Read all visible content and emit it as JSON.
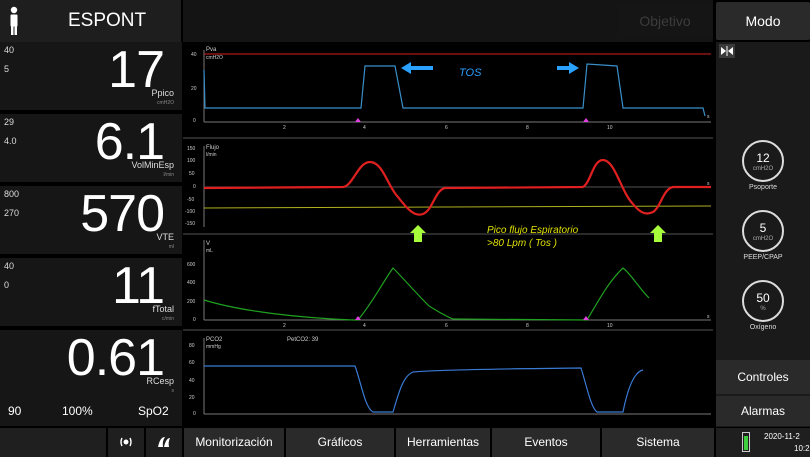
{
  "header": {
    "mode": "ESPONT",
    "objetivo": "Objetivo",
    "modo": "Modo"
  },
  "params": [
    {
      "hi": "40",
      "lo": "5",
      "value": "17",
      "label": "Ppico",
      "unit": "cmH2O"
    },
    {
      "hi": "29",
      "lo": "4.0",
      "value": "6.1",
      "label": "VolMinEsp",
      "unit": "l/min"
    },
    {
      "hi": "800",
      "lo": "270",
      "value": "570",
      "label": "VTE",
      "unit": "ml"
    },
    {
      "hi": "40",
      "lo": "0",
      "value": "11",
      "label": "fTotal",
      "unit": "c/min"
    },
    {
      "hi": "",
      "lo": "",
      "value": "0.61",
      "label": "RCesp",
      "unit": "s"
    }
  ],
  "spo2": {
    "pulse": "90",
    "percent": "100%",
    "label": "SpO2"
  },
  "graphs": {
    "pressure": {
      "title": "Pva",
      "unit": "cmH2O",
      "y_ticks": [
        "40",
        "20",
        "0"
      ]
    },
    "flow": {
      "title": "Flujo",
      "unit": "l/min",
      "y_ticks": [
        "150",
        "100",
        "50",
        "0",
        "-50",
        "-100",
        "-150"
      ]
    },
    "volume": {
      "title": "V",
      "unit": "mL",
      "y_ticks": [
        "600",
        "400",
        "200",
        "0"
      ]
    },
    "co2": {
      "title": "PCO2",
      "unit": "mmHg",
      "petco2": "PetCO2: 39",
      "y_ticks": [
        "80",
        "60",
        "40",
        "20",
        "0"
      ]
    },
    "x_ticks": [
      "2",
      "4",
      "6",
      "8",
      "10"
    ],
    "x_end": "s",
    "annotations": {
      "tos": "TOS",
      "peak_line1": "Pico flujo Espiratorio",
      "peak_line2": ">80 Lpm  ( Tos )"
    },
    "colors": {
      "pressure": "#3a8fc9",
      "flow": "#e02020",
      "volume": "#1fa11f",
      "co2": "#3a7bd5",
      "annotation": "#e0e000",
      "tos": "#3aa0ff"
    }
  },
  "knobs": [
    {
      "value": "12",
      "unit": "cmH2O",
      "label": "Psoporte"
    },
    {
      "value": "5",
      "unit": "cmH2O",
      "label": "PEEP/CPAP"
    },
    {
      "value": "50",
      "unit": "%",
      "label": "Oxígeno"
    }
  ],
  "right_buttons": {
    "controles": "Controles",
    "alarmas": "Alarmas"
  },
  "tabs": [
    "Monitorización",
    "Gráficos",
    "Herramientas",
    "Eventos",
    "Sistema"
  ],
  "status": {
    "date": "2020-11-2",
    "time": "10:2"
  }
}
